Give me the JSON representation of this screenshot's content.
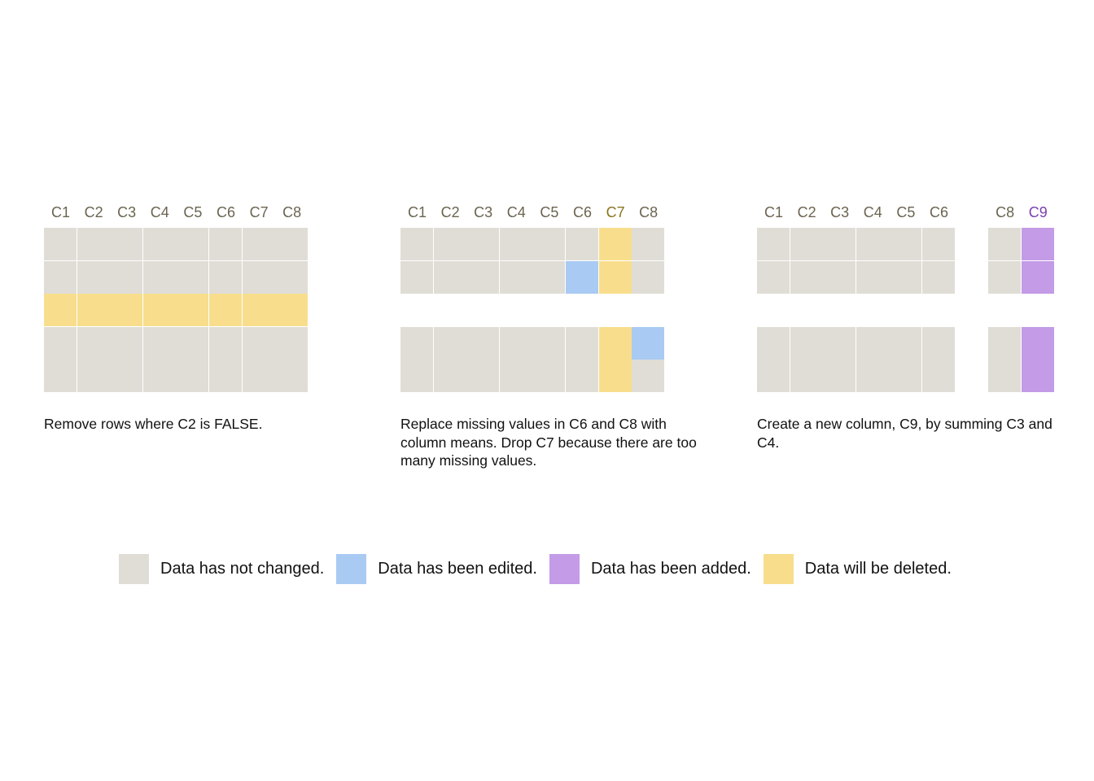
{
  "colors": {
    "unchanged": "#e0ddd6",
    "edited": "#a9caf2",
    "added": "#c39be6",
    "deleted": "#f8de8c",
    "header_default": "#6b6450",
    "header_deleted": "#8a7420",
    "header_added": "#7a3fb0"
  },
  "panels": [
    {
      "id": "remove-rows",
      "columns": [
        {
          "label": "C1",
          "state": "default"
        },
        {
          "label": "C2",
          "state": "default"
        },
        {
          "label": "C3",
          "state": "default"
        },
        {
          "label": "C4",
          "state": "default"
        },
        {
          "label": "C5",
          "state": "default"
        },
        {
          "label": "C6",
          "state": "default"
        },
        {
          "label": "C7",
          "state": "default"
        },
        {
          "label": "C8",
          "state": "default"
        }
      ],
      "rows": [
        [
          "unchanged",
          "unchanged",
          "unchanged",
          "unchanged",
          "unchanged",
          "unchanged",
          "unchanged",
          "unchanged"
        ],
        [
          "unchanged",
          "unchanged",
          "unchanged",
          "unchanged",
          "unchanged",
          "unchanged",
          "unchanged",
          "unchanged"
        ],
        [
          "deleted",
          "deleted",
          "deleted",
          "deleted",
          "deleted",
          "deleted",
          "deleted",
          "deleted"
        ],
        [
          "unchanged",
          "unchanged",
          "unchanged",
          "unchanged",
          "unchanged",
          "unchanged",
          "unchanged",
          "unchanged"
        ],
        [
          "unchanged",
          "unchanged",
          "unchanged",
          "unchanged",
          "unchanged",
          "unchanged",
          "unchanged",
          "unchanged"
        ]
      ],
      "caption": "Remove rows where C2 is FALSE."
    },
    {
      "id": "replace-missing",
      "columns": [
        {
          "label": "C1",
          "state": "default"
        },
        {
          "label": "C2",
          "state": "default"
        },
        {
          "label": "C3",
          "state": "default"
        },
        {
          "label": "C4",
          "state": "default"
        },
        {
          "label": "C5",
          "state": "default"
        },
        {
          "label": "C6",
          "state": "default"
        },
        {
          "label": "C7",
          "state": "deleted"
        },
        {
          "label": "C8",
          "state": "default"
        }
      ],
      "rows": [
        [
          "unchanged",
          "unchanged",
          "unchanged",
          "unchanged",
          "unchanged",
          "unchanged",
          "deleted",
          "unchanged"
        ],
        [
          "unchanged",
          "unchanged",
          "unchanged",
          "unchanged",
          "unchanged",
          "edited",
          "deleted",
          "unchanged"
        ],
        [
          null,
          null,
          null,
          null,
          null,
          null,
          null,
          null
        ],
        [
          "unchanged",
          "unchanged",
          "unchanged",
          "unchanged",
          "unchanged",
          "unchanged",
          "deleted",
          "edited"
        ],
        [
          "unchanged",
          "unchanged",
          "unchanged",
          "unchanged",
          "unchanged",
          "unchanged",
          "deleted",
          "unchanged"
        ]
      ],
      "caption": "Replace missing values in C6 and C8 with column means. Drop C7 because there are too many missing values."
    },
    {
      "id": "create-column",
      "columns": [
        {
          "label": "C1",
          "state": "default"
        },
        {
          "label": "C2",
          "state": "default"
        },
        {
          "label": "C3",
          "state": "default"
        },
        {
          "label": "C4",
          "state": "default"
        },
        {
          "label": "C5",
          "state": "default"
        },
        {
          "label": "C6",
          "state": "default"
        },
        {
          "label": "",
          "state": "gap"
        },
        {
          "label": "C8",
          "state": "default"
        },
        {
          "label": "C9",
          "state": "added"
        }
      ],
      "rows": [
        [
          "unchanged",
          "unchanged",
          "unchanged",
          "unchanged",
          "unchanged",
          "unchanged",
          null,
          "unchanged",
          "added"
        ],
        [
          "unchanged",
          "unchanged",
          "unchanged",
          "unchanged",
          "unchanged",
          "unchanged",
          null,
          "unchanged",
          "added"
        ],
        [
          null,
          null,
          null,
          null,
          null,
          null,
          null,
          null,
          null
        ],
        [
          "unchanged",
          "unchanged",
          "unchanged",
          "unchanged",
          "unchanged",
          "unchanged",
          null,
          "unchanged",
          "added"
        ],
        [
          "unchanged",
          "unchanged",
          "unchanged",
          "unchanged",
          "unchanged",
          "unchanged",
          null,
          "unchanged",
          "added"
        ]
      ],
      "caption": "Create a new column, C9, by summing C3 and C4."
    }
  ],
  "legend": [
    {
      "state": "unchanged",
      "label": "Data has not changed."
    },
    {
      "state": "edited",
      "label": "Data has been edited."
    },
    {
      "state": "added",
      "label": "Data has been added."
    },
    {
      "state": "deleted",
      "label": "Data will be deleted."
    }
  ]
}
